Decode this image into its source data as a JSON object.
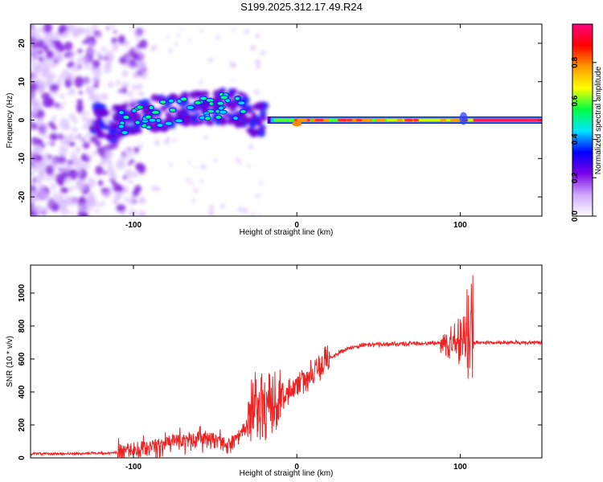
{
  "title": "S199.2025.312.17.49.R24",
  "chart_data": [
    {
      "type": "heatmap",
      "name": "spectrogram",
      "xlabel": "Height of straight line (km)",
      "ylabel": "Frequency (Hz)",
      "xlim": [
        -163,
        150
      ],
      "ylim": [
        -25,
        25
      ],
      "xticks": [
        -100,
        0,
        100
      ],
      "xtick_labels": [
        "-100",
        "0",
        "100"
      ],
      "yticks": [
        20,
        10,
        0,
        -10,
        -20
      ],
      "ytick_labels": [
        "20",
        "10",
        "0",
        "-10",
        "-20"
      ],
      "ridge_frequency_hz": [
        {
          "x": -120,
          "y": -1
        },
        {
          "x": -100,
          "y": 0
        },
        {
          "x": -80,
          "y": 2
        },
        {
          "x": -60,
          "y": 3
        },
        {
          "x": -40,
          "y": 4
        },
        {
          "x": -28,
          "y": 1
        },
        {
          "x": -15,
          "y": 0
        },
        {
          "x": 0,
          "y": -1
        },
        {
          "x": 50,
          "y": 0
        },
        {
          "x": 100,
          "y": 0
        },
        {
          "x": 150,
          "y": 0
        }
      ],
      "colorbar": {
        "label": "Normalized spectral amplitude",
        "range": [
          0,
          1
        ],
        "ticks": [
          0.0,
          0.2,
          0.4,
          0.6,
          0.8
        ],
        "tick_labels": [
          "0.0",
          "0.2",
          "0.4",
          "0.6",
          "0.8"
        ],
        "colors": [
          "#ffffff",
          "#cfa8ff",
          "#7a00e6",
          "#0000ff",
          "#00e5ff",
          "#00ff40",
          "#ffff00",
          "#ff9900",
          "#ff0000",
          "#ff007f"
        ]
      }
    },
    {
      "type": "line",
      "name": "snr",
      "xlabel": "Height of straight line (km)",
      "ylabel": "SNR (10 * v/v)",
      "xlim": [
        -163,
        150
      ],
      "ylim": [
        0,
        1170
      ],
      "xticks": [
        -100,
        0,
        100
      ],
      "xtick_labels": [
        "-100",
        "0",
        "100"
      ],
      "yticks": [
        0,
        200,
        400,
        600,
        800,
        1000
      ],
      "ytick_labels": [
        "0",
        "200",
        "400",
        "600",
        "800",
        "1000"
      ],
      "color": "#ee2222",
      "points": [
        {
          "x": -163,
          "y": 25
        },
        {
          "x": -140,
          "y": 25
        },
        {
          "x": -115,
          "y": 30
        },
        {
          "x": -100,
          "y": 45
        },
        {
          "x": -90,
          "y": 60
        },
        {
          "x": -80,
          "y": 90
        },
        {
          "x": -70,
          "y": 110
        },
        {
          "x": -60,
          "y": 120
        },
        {
          "x": -50,
          "y": 110
        },
        {
          "x": -40,
          "y": 80
        },
        {
          "x": -30,
          "y": 200
        },
        {
          "x": -25,
          "y": 330
        },
        {
          "x": -20,
          "y": 310
        },
        {
          "x": -10,
          "y": 370
        },
        {
          "x": 0,
          "y": 430
        },
        {
          "x": 10,
          "y": 520
        },
        {
          "x": 20,
          "y": 610
        },
        {
          "x": 30,
          "y": 660
        },
        {
          "x": 40,
          "y": 685
        },
        {
          "x": 60,
          "y": 690
        },
        {
          "x": 80,
          "y": 695
        },
        {
          "x": 95,
          "y": 700
        },
        {
          "x": 100,
          "y": 700
        },
        {
          "x": 106,
          "y": 700
        },
        {
          "x": 110,
          "y": 700
        },
        {
          "x": 130,
          "y": 700
        },
        {
          "x": 150,
          "y": 700
        }
      ]
    }
  ]
}
